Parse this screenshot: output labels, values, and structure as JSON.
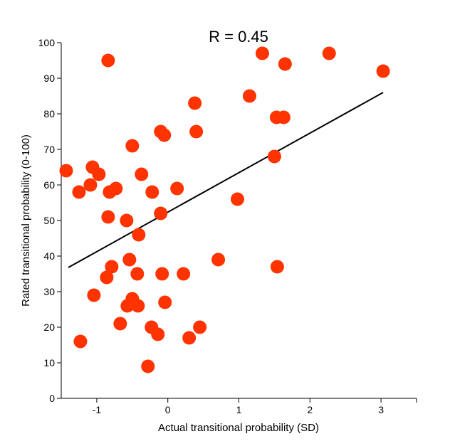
{
  "chart_data": {
    "type": "scatter",
    "title": "R = 0.45",
    "xlabel": "Actual transitional probability (SD)",
    "ylabel": "Rated transitional probability (0-100)",
    "xlim": [
      -1.5,
      3.5
    ],
    "ylim": [
      0,
      100
    ],
    "xticks": [
      -1,
      0,
      1,
      2,
      3
    ],
    "xtick_labels": [
      "-1",
      "0",
      "1",
      "2",
      "3"
    ],
    "yticks": [
      0,
      10,
      20,
      30,
      40,
      50,
      60,
      70,
      80,
      90,
      100
    ],
    "ytick_labels": [
      "0",
      "10",
      "20",
      "30",
      "40",
      "50",
      "60",
      "70",
      "80",
      "90",
      "100"
    ],
    "grid": false,
    "colors": {
      "points": "#ff3300",
      "line": "#000000",
      "axis": "#000000"
    },
    "series": [
      {
        "name": "items",
        "x": [
          -0.84,
          1.33,
          2.27,
          1.65,
          3.03,
          1.15,
          0.38,
          1.53,
          1.63,
          -0.1,
          0.4,
          -0.05,
          -0.5,
          1.5,
          -1.43,
          -1.06,
          -0.97,
          -1.09,
          -1.25,
          -0.73,
          -0.82,
          -0.37,
          -0.22,
          0.13,
          0.98,
          -0.84,
          -0.58,
          -0.1,
          -0.41,
          -0.54,
          0.71,
          -0.79,
          1.54,
          -0.86,
          -0.43,
          -0.08,
          0.22,
          -1.04,
          -0.5,
          -0.04,
          -0.57,
          -0.42,
          -0.67,
          -0.23,
          0.45,
          -0.14,
          0.3,
          -1.23,
          -0.28
        ],
        "y": [
          95,
          97,
          97,
          94,
          92,
          85,
          83,
          79,
          79,
          75,
          75,
          74,
          71,
          68,
          64,
          65,
          63,
          60,
          58,
          59,
          58,
          63,
          58,
          59,
          56,
          51,
          50,
          52,
          46,
          39,
          39,
          37,
          37,
          34,
          35,
          35,
          35,
          29,
          28,
          27,
          26,
          26,
          21,
          20,
          20,
          18,
          17,
          16,
          9
        ]
      }
    ],
    "fit_line": {
      "x": [
        -1.4,
        3.03
      ],
      "y": [
        36.8,
        86.0
      ]
    }
  }
}
